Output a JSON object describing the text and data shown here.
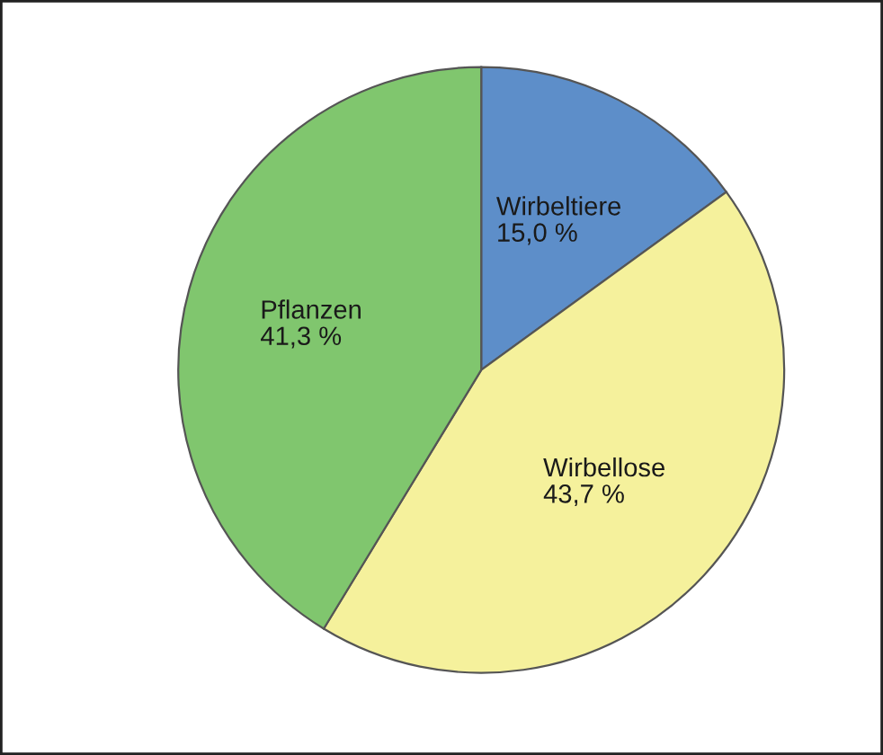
{
  "chart_data": {
    "type": "pie",
    "categories": [
      "Wirbeltiere",
      "Wirbellose",
      "Pflanzen"
    ],
    "values": [
      15.0,
      43.7,
      41.3
    ],
    "value_labels": [
      "15,0 %",
      "43,7 %",
      "41,3 %"
    ],
    "colors": [
      "#5d8ec9",
      "#f5f19c",
      "#80c66e"
    ],
    "legend": false
  }
}
